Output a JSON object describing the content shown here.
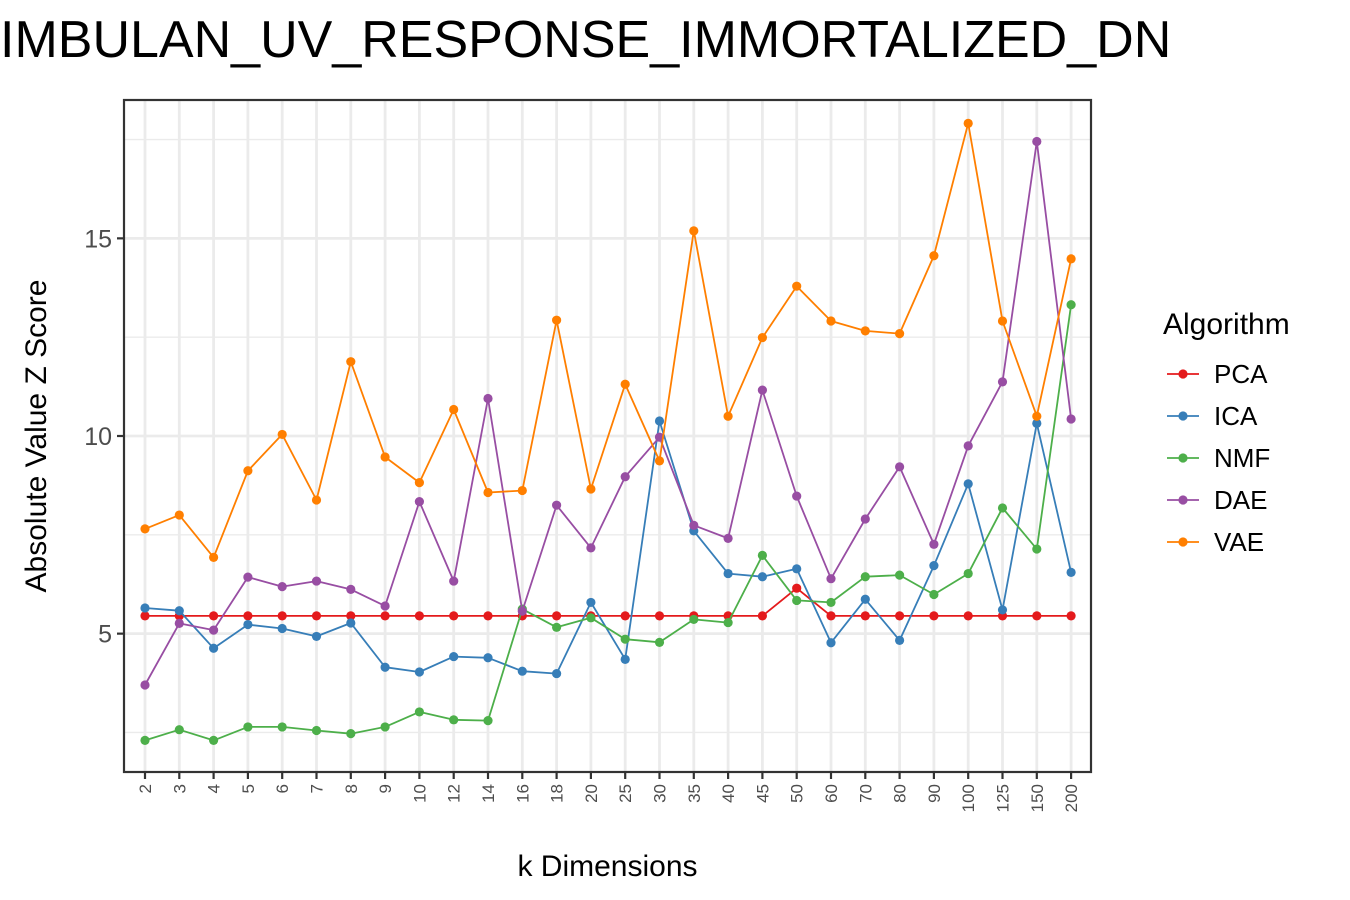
{
  "chart_data": {
    "type": "line",
    "title": "IMBULAN_UV_RESPONSE_IMMORTALIZED_DN",
    "xlabel": "k Dimensions",
    "ylabel": "Absolute Value Z Score",
    "categories": [
      "2",
      "3",
      "4",
      "5",
      "6",
      "7",
      "8",
      "9",
      "10",
      "12",
      "14",
      "16",
      "18",
      "20",
      "25",
      "30",
      "35",
      "40",
      "45",
      "50",
      "60",
      "70",
      "80",
      "90",
      "100",
      "125",
      "150",
      "200"
    ],
    "yticks": [
      5,
      10,
      15
    ],
    "ylim": [
      1.5,
      18.5
    ],
    "grid": true,
    "legend": {
      "title": "Algorithm",
      "position": "right"
    },
    "series": [
      {
        "name": "PCA",
        "color": "#E41A1C",
        "values": [
          5.45,
          5.45,
          5.45,
          5.45,
          5.45,
          5.45,
          5.45,
          5.45,
          5.45,
          5.45,
          5.45,
          5.45,
          5.45,
          5.45,
          5.45,
          5.45,
          5.45,
          5.45,
          5.45,
          6.15,
          5.45,
          5.45,
          5.45,
          5.45,
          5.45,
          5.45,
          5.45,
          5.45
        ]
      },
      {
        "name": "ICA",
        "color": "#377EB8",
        "values": [
          5.65,
          5.58,
          4.63,
          5.23,
          5.13,
          4.93,
          5.27,
          4.15,
          4.03,
          4.42,
          4.39,
          4.05,
          3.99,
          5.79,
          4.35,
          10.38,
          7.6,
          6.52,
          6.44,
          6.64,
          4.77,
          5.87,
          4.83,
          6.72,
          8.79,
          5.6,
          10.32,
          6.55
        ]
      },
      {
        "name": "NMF",
        "color": "#4DAF4A",
        "values": [
          2.3,
          2.57,
          2.3,
          2.64,
          2.64,
          2.55,
          2.47,
          2.64,
          3.02,
          2.82,
          2.8,
          5.62,
          5.16,
          5.4,
          4.86,
          4.78,
          5.36,
          5.28,
          6.98,
          5.84,
          5.79,
          6.44,
          6.48,
          5.99,
          6.52,
          8.18,
          7.14,
          13.32
        ]
      },
      {
        "name": "DAE",
        "color": "#984EA3",
        "values": [
          3.7,
          5.26,
          5.09,
          6.43,
          6.19,
          6.33,
          6.12,
          5.7,
          8.34,
          6.33,
          10.95,
          5.57,
          8.25,
          7.17,
          8.97,
          9.97,
          7.74,
          7.41,
          11.16,
          8.48,
          6.39,
          7.9,
          9.22,
          7.26,
          9.75,
          11.37,
          17.45,
          10.43
        ]
      },
      {
        "name": "VAE",
        "color": "#FF7F00",
        "values": [
          7.65,
          8.0,
          6.93,
          9.12,
          10.04,
          8.38,
          11.88,
          9.47,
          8.82,
          10.67,
          8.57,
          8.62,
          12.93,
          8.66,
          11.31,
          9.37,
          15.19,
          10.5,
          12.49,
          13.79,
          12.91,
          12.66,
          12.59,
          14.56,
          17.91,
          12.91,
          10.5,
          14.48
        ]
      }
    ]
  }
}
